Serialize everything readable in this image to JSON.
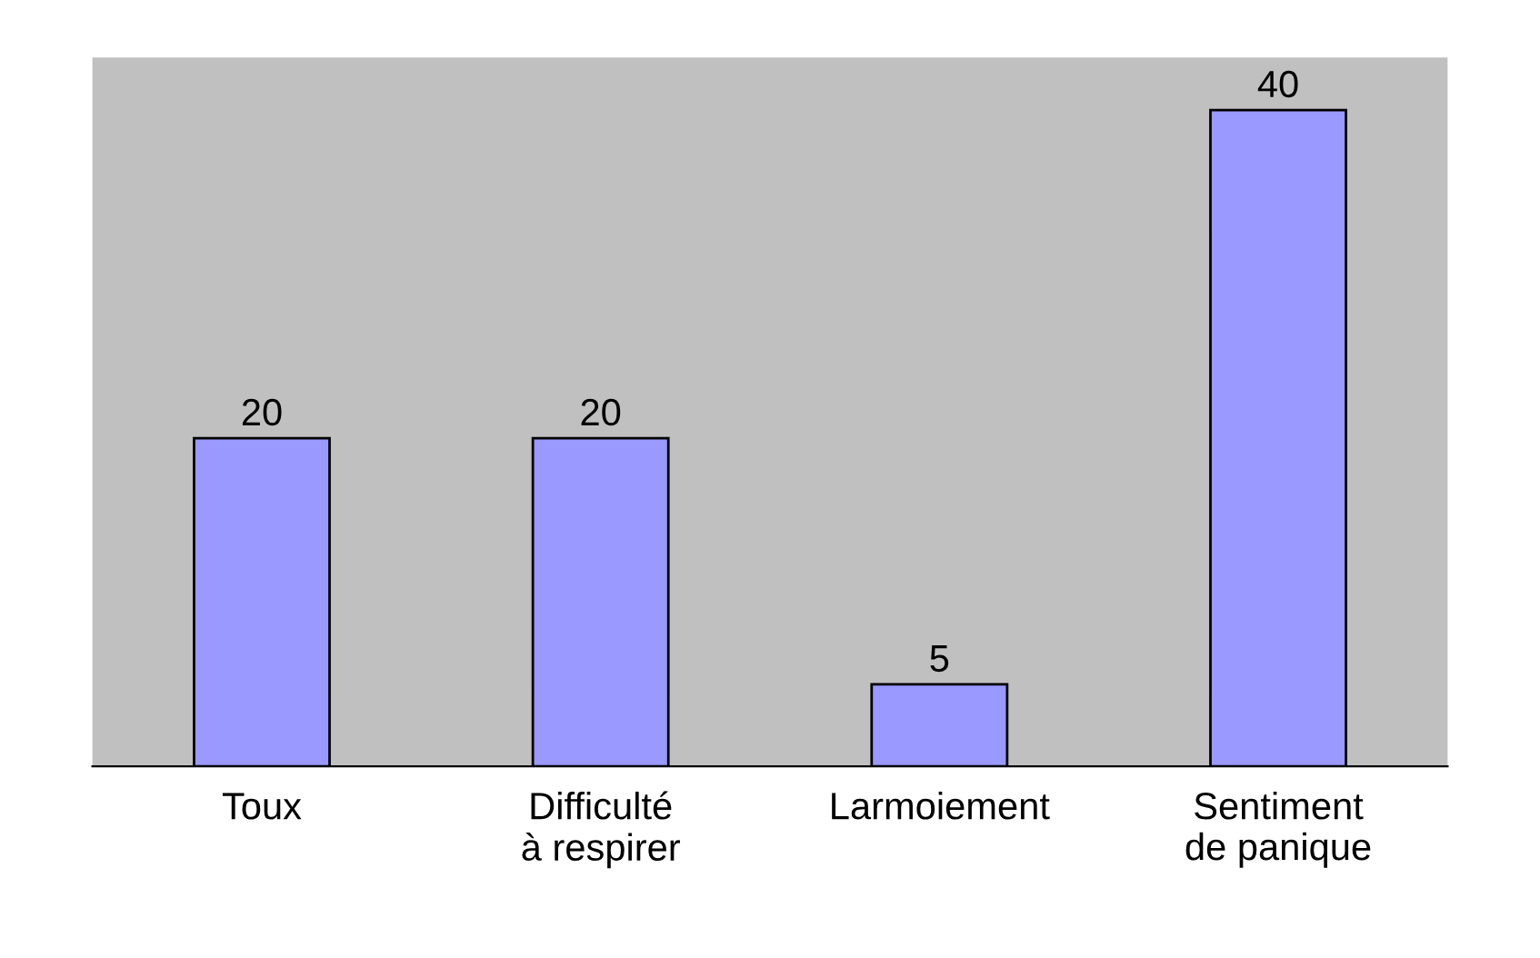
{
  "chart_data": {
    "type": "bar",
    "categories": [
      "Toux",
      "Difficulté\nà respirer",
      "Larmoiement",
      "Sentiment\nde panique"
    ],
    "values": [
      20,
      20,
      5,
      40
    ],
    "color": "#9999ff",
    "data_labels": true,
    "grid": false,
    "legend": false,
    "tick_labels": "x"
  }
}
